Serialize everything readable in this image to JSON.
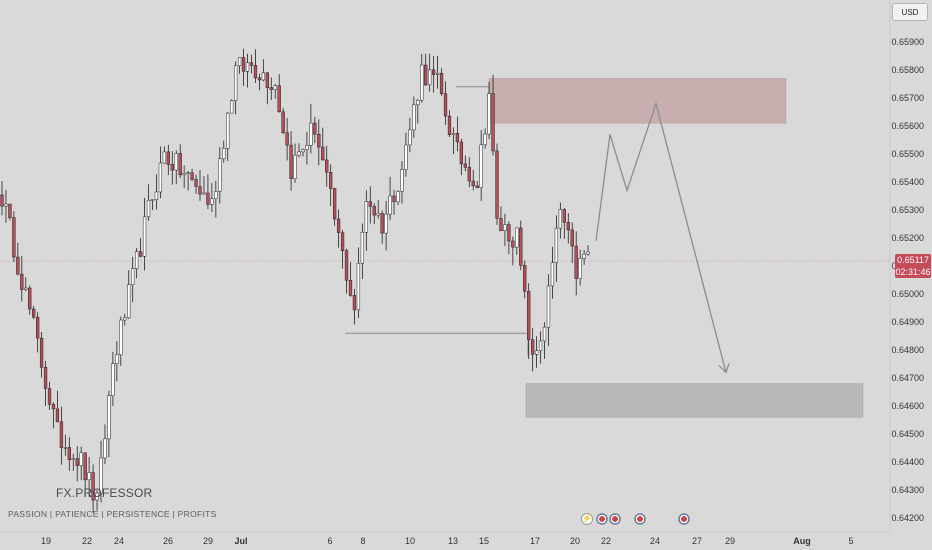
{
  "header": {
    "currency_label": "USD"
  },
  "watermark": {
    "brand": "FX.PROFESSOR",
    "tagline": "PASSION | PATIENCE | PERSISTENCE | PROFITS"
  },
  "price_marker": {
    "price": "0.65117",
    "countdown": "02:31:46",
    "color": "#c44a57"
  },
  "events": [
    "lightning-icon",
    "flag-icon",
    "flag-icon",
    "flag-icon",
    "flag-icon"
  ],
  "colors": {
    "bull": "#ffffff",
    "bear": "#b94d5c",
    "wick": "#222222",
    "supply_zone": "#c9aeb0",
    "demand_zone": "#b8b8b8",
    "projection": "#8c8c8c"
  },
  "chart_data": {
    "type": "candlestick",
    "y_axis": {
      "range": [
        0.6419,
        0.6596
      ],
      "ticks": [
        "0.65900",
        "0.65800",
        "0.65700",
        "0.65600",
        "0.65500",
        "0.65400",
        "0.65300",
        "0.65200",
        "0.65100",
        "0.65000",
        "0.64900",
        "0.64800",
        "0.64700",
        "0.64600",
        "0.64500",
        "0.64400",
        "0.64300",
        "0.64200"
      ]
    },
    "x_axis": {
      "ticks": [
        "19",
        "22",
        "24",
        "26",
        "29",
        "Jul",
        "6",
        "8",
        "10",
        "13",
        "15",
        "17",
        "20",
        "22",
        "24",
        "27",
        "29",
        "Aug",
        "5"
      ]
    },
    "anchors": [
      {
        "i": 0,
        "p": 0.6535
      },
      {
        "i": 8,
        "p": 0.6488
      },
      {
        "i": 14,
        "p": 0.645
      },
      {
        "i": 20,
        "p": 0.644
      },
      {
        "i": 24,
        "p": 0.6425
      },
      {
        "i": 28,
        "p": 0.6475
      },
      {
        "i": 33,
        "p": 0.6505
      },
      {
        "i": 37,
        "p": 0.653
      },
      {
        "i": 41,
        "p": 0.655
      },
      {
        "i": 48,
        "p": 0.654
      },
      {
        "i": 53,
        "p": 0.6532
      },
      {
        "i": 59,
        "p": 0.658
      },
      {
        "i": 63,
        "p": 0.6582
      },
      {
        "i": 69,
        "p": 0.6575
      },
      {
        "i": 73,
        "p": 0.6545
      },
      {
        "i": 79,
        "p": 0.656
      },
      {
        "i": 85,
        "p": 0.652
      },
      {
        "i": 89,
        "p": 0.6495
      },
      {
        "i": 92,
        "p": 0.6535
      },
      {
        "i": 96,
        "p": 0.6525
      },
      {
        "i": 101,
        "p": 0.6545
      },
      {
        "i": 106,
        "p": 0.658
      },
      {
        "i": 110,
        "p": 0.6575
      },
      {
        "i": 115,
        "p": 0.655
      },
      {
        "i": 120,
        "p": 0.654
      },
      {
        "i": 123,
        "p": 0.6572
      },
      {
        "i": 125,
        "p": 0.6525
      },
      {
        "i": 130,
        "p": 0.652
      },
      {
        "i": 134,
        "p": 0.6475
      },
      {
        "i": 137,
        "p": 0.649
      },
      {
        "i": 141,
        "p": 0.653
      },
      {
        "i": 145,
        "p": 0.6508
      },
      {
        "i": 148,
        "p": 0.6515
      }
    ],
    "zones": [
      {
        "name": "supply-zone",
        "from": "15",
        "to": "27",
        "low": 0.6561,
        "high": 0.6577
      },
      {
        "name": "demand-zone",
        "from": "17",
        "to": "5",
        "low": 0.6456,
        "high": 0.6468
      }
    ],
    "levels": [
      {
        "name": "swing-low-line",
        "from": "8",
        "to": "17",
        "price": 0.6486
      },
      {
        "name": "swing-high-line",
        "from": "13",
        "to": "15",
        "price": 0.6574
      }
    ],
    "projection": [
      {
        "x": "22",
        "p": 0.6519
      },
      {
        "x": "22",
        "p": 0.6557
      },
      {
        "x": "24",
        "p": 0.6537
      },
      {
        "x": "24",
        "p": 0.6568
      },
      {
        "x": "29",
        "p": 0.6472
      }
    ]
  }
}
